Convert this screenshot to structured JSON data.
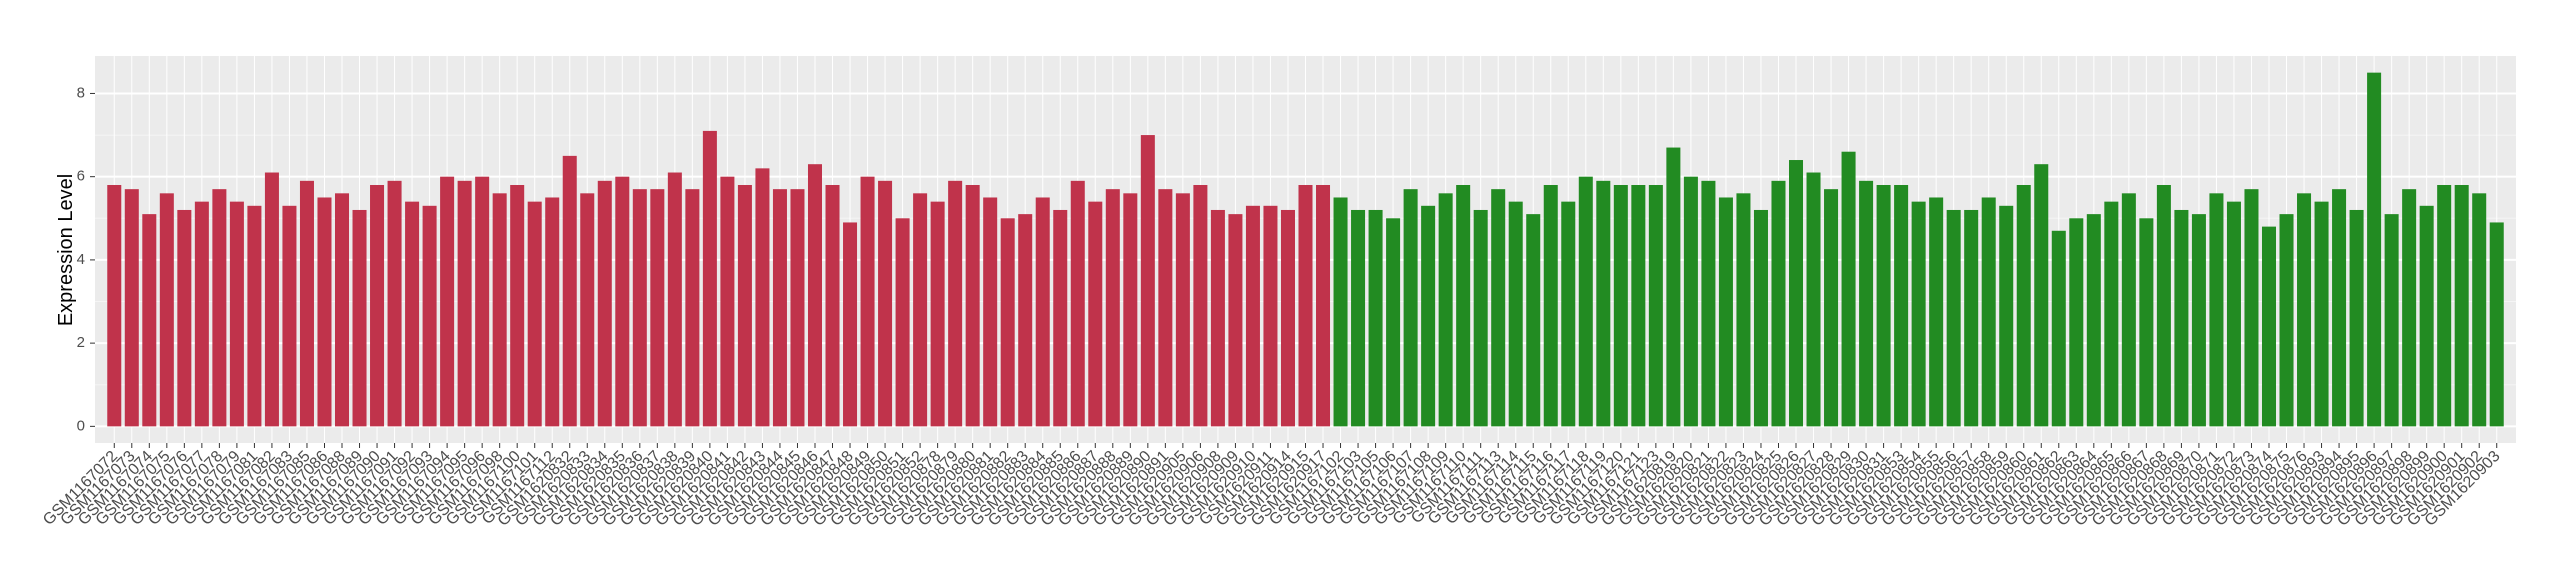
{
  "chart_data": {
    "type": "bar",
    "y_label": "Expression Level",
    "ylim": [
      -0.4,
      8.9
    ],
    "yticks": [
      0,
      2,
      4,
      6,
      8
    ],
    "grid": true,
    "series": [
      {
        "color": "#c0334b",
        "categories": [
          "GSM1167072",
          "GSM1167073",
          "GSM1167074",
          "GSM1167075",
          "GSM1167076",
          "GSM1167077",
          "GSM1167078",
          "GSM1167079",
          "GSM1167081",
          "GSM1167082",
          "GSM1167083",
          "GSM1167085",
          "GSM1167086",
          "GSM1167088",
          "GSM1167089",
          "GSM1167090",
          "GSM1167091",
          "GSM1167092",
          "GSM1167093",
          "GSM1167094",
          "GSM1167095",
          "GSM1167096",
          "GSM1167098",
          "GSM1167100",
          "GSM1167101",
          "GSM1167112",
          "GSM1620832",
          "GSM1620833",
          "GSM1620834",
          "GSM1620835",
          "GSM1620836",
          "GSM1620837",
          "GSM1620838",
          "GSM1620839",
          "GSM1620840",
          "GSM1620841",
          "GSM1620842",
          "GSM1620843",
          "GSM1620844",
          "GSM1620845",
          "GSM1620846",
          "GSM1620847",
          "GSM1620848",
          "GSM1620849",
          "GSM1620850",
          "GSM1620851",
          "GSM1620852",
          "GSM1620878",
          "GSM1620879",
          "GSM1620880",
          "GSM1620881",
          "GSM1620882",
          "GSM1620883",
          "GSM1620884",
          "GSM1620885",
          "GSM1620886",
          "GSM1620887",
          "GSM1620888",
          "GSM1620889",
          "GSM1620890",
          "GSM1620891",
          "GSM1620905",
          "GSM1620906",
          "GSM1620908",
          "GSM1620909",
          "GSM1620910",
          "GSM1620911",
          "GSM1620914",
          "GSM1620915",
          "GSM1620917"
        ],
        "values": [
          5.8,
          5.7,
          5.1,
          5.6,
          5.2,
          5.4,
          5.7,
          5.4,
          5.3,
          6.1,
          5.3,
          5.9,
          5.5,
          5.6,
          5.2,
          5.8,
          5.9,
          5.4,
          5.3,
          6.0,
          5.9,
          6.0,
          5.6,
          5.8,
          5.4,
          5.5,
          6.5,
          5.6,
          5.9,
          6.0,
          5.7,
          5.7,
          6.1,
          5.7,
          7.1,
          6.0,
          5.8,
          6.2,
          5.7,
          5.7,
          6.3,
          5.8,
          4.9,
          6.0,
          5.9,
          5.0,
          5.6,
          5.4,
          5.9,
          5.8,
          5.5,
          5.0,
          5.1,
          5.5,
          5.2,
          5.9,
          5.4,
          5.7,
          5.6,
          7.0,
          5.7,
          5.6,
          5.8,
          5.2,
          5.1,
          5.3,
          5.3,
          5.2,
          5.8,
          5.8
        ]
      },
      {
        "color": "#228b22",
        "categories": [
          "GSM1167102",
          "GSM1167103",
          "GSM1167105",
          "GSM1167106",
          "GSM1167107",
          "GSM1167108",
          "GSM1167109",
          "GSM1167110",
          "GSM1167111",
          "GSM1167113",
          "GSM1167114",
          "GSM1167115",
          "GSM1167116",
          "GSM1167117",
          "GSM1167118",
          "GSM1167119",
          "GSM1167120",
          "GSM1167121",
          "GSM1167123",
          "GSM1620819",
          "GSM1620820",
          "GSM1620821",
          "GSM1620822",
          "GSM1620823",
          "GSM1620824",
          "GSM1620825",
          "GSM1620826",
          "GSM1620827",
          "GSM1620828",
          "GSM1620829",
          "GSM1620830",
          "GSM1620831",
          "GSM1620853",
          "GSM1620854",
          "GSM1620855",
          "GSM1620856",
          "GSM1620857",
          "GSM1620858",
          "GSM1620859",
          "GSM1620860",
          "GSM1620861",
          "GSM1620862",
          "GSM1620863",
          "GSM1620864",
          "GSM1620865",
          "GSM1620866",
          "GSM1620867",
          "GSM1620868",
          "GSM1620869",
          "GSM1620870",
          "GSM1620871",
          "GSM1620872",
          "GSM1620873",
          "GSM1620874",
          "GSM1620875",
          "GSM1620876",
          "GSM1620893",
          "GSM1620894",
          "GSM1620895",
          "GSM1620896",
          "GSM1620897",
          "GSM1620898",
          "GSM1620899",
          "GSM1620900",
          "GSM1620901",
          "GSM1620902",
          "GSM1620903"
        ],
        "values": [
          5.5,
          5.2,
          5.2,
          5.0,
          5.7,
          5.3,
          5.6,
          5.8,
          5.2,
          5.7,
          5.4,
          5.1,
          5.8,
          5.4,
          6.0,
          5.9,
          5.8,
          5.8,
          5.8,
          6.7,
          6.0,
          5.9,
          5.5,
          5.6,
          5.2,
          5.9,
          6.4,
          6.1,
          5.7,
          6.6,
          5.9,
          5.8,
          5.8,
          5.4,
          5.5,
          5.2,
          5.2,
          5.5,
          5.3,
          5.8,
          6.3,
          4.7,
          5.0,
          5.1,
          5.4,
          5.6,
          5.0,
          5.8,
          5.2,
          5.1,
          5.6,
          5.4,
          5.7,
          4.8,
          5.1,
          5.6,
          5.4,
          5.7,
          5.2,
          8.5,
          5.1,
          5.7,
          5.3,
          5.8,
          5.8,
          5.6,
          4.9
        ]
      }
    ]
  }
}
